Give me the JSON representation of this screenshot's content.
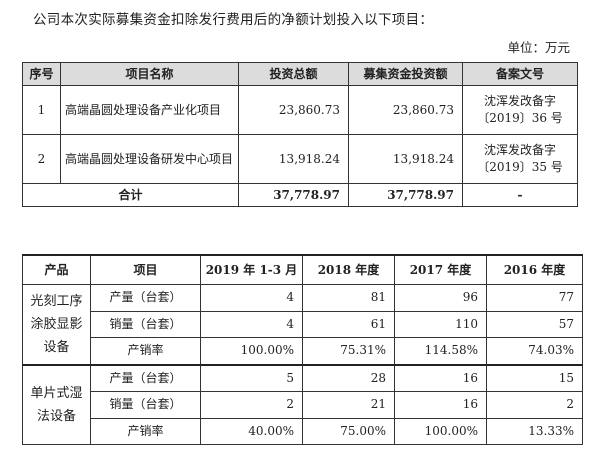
{
  "intro_text": "公司本次实际募集资金扣除发行费用后的净额计划投入以下项目：",
  "unit_text": "单位：万元",
  "projects_table": {
    "headers": [
      "序号",
      "项目名称",
      "投资总额",
      "募集资金投资额",
      "备案文号"
    ],
    "rows": [
      {
        "no": "1",
        "name": "高端晶圆处理设备产业化项目",
        "total": "23,860.73",
        "raised": "23,860.73",
        "filing": "沈浑发改备字〔2019〕36 号"
      },
      {
        "no": "2",
        "name": "高端晶圆处理设备研发中心项目",
        "total": "13,918.24",
        "raised": "13,918.24",
        "filing": "沈浑发改备字〔2019〕35 号"
      }
    ],
    "total_row": {
      "label": "合计",
      "total": "37,778.97",
      "raised": "37,778.97",
      "filing": "-"
    }
  },
  "production_table": {
    "headers": [
      "产品",
      "项目",
      "2019 年 1-3 月",
      "2018 年度",
      "2017 年度",
      "2016 年度"
    ],
    "groups": [
      {
        "product": "光刻工序涂胶显影设备",
        "rows": [
          {
            "item": "产量（台套）",
            "values": [
              "4",
              "81",
              "96",
              "77"
            ]
          },
          {
            "item": "销量（台套）",
            "values": [
              "4",
              "61",
              "110",
              "57"
            ]
          },
          {
            "item": "产销率",
            "values": [
              "100.00%",
              "75.31%",
              "114.58%",
              "74.03%"
            ]
          }
        ]
      },
      {
        "product": "单片式湿法设备",
        "rows": [
          {
            "item": "产量（台套）",
            "values": [
              "5",
              "28",
              "16",
              "15"
            ]
          },
          {
            "item": "销量（台套）",
            "values": [
              "2",
              "21",
              "16",
              "2"
            ]
          },
          {
            "item": "产销率",
            "values": [
              "40.00%",
              "75.00%",
              "100.00%",
              "13.33%"
            ]
          }
        ]
      }
    ]
  }
}
